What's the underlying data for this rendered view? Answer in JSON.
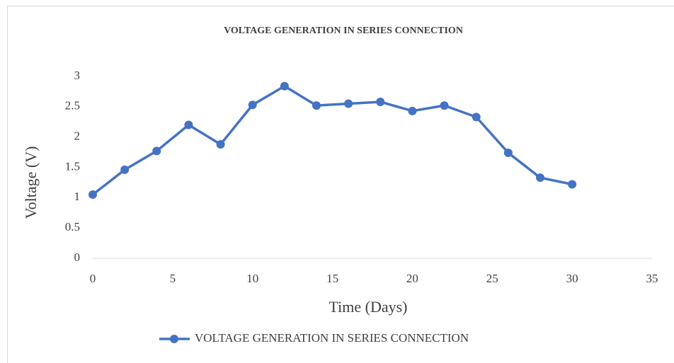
{
  "chart_data": {
    "type": "line",
    "title": "VOLTAGE  GENERATION IN SERIES CONNECTION",
    "x_label": "Time (Days)",
    "y_label": "Voltage   (V)",
    "x": [
      0,
      2,
      4,
      6,
      8,
      10,
      12,
      14,
      16,
      18,
      20,
      22,
      24,
      26,
      28,
      30
    ],
    "series": [
      {
        "name": "VOLTAGE GENERATION IN SERIES CONNECTION",
        "color": "#4472c4",
        "values": [
          1.05,
          1.46,
          1.77,
          2.2,
          1.88,
          2.53,
          2.84,
          2.52,
          2.55,
          2.58,
          2.43,
          2.52,
          2.33,
          1.74,
          1.33,
          1.22
        ]
      }
    ],
    "xlim": [
      0,
      35
    ],
    "xticks": [
      0,
      5,
      10,
      15,
      20,
      25,
      30,
      35
    ],
    "ylim": [
      0,
      3
    ],
    "yticks": [
      0,
      0.5,
      1,
      1.5,
      2,
      2.5,
      3
    ],
    "grid": false,
    "legend": "bottom"
  }
}
